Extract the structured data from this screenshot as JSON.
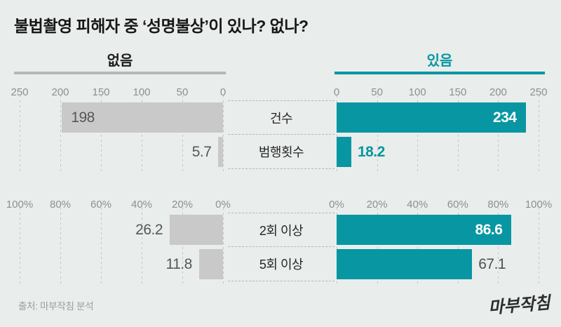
{
  "title": "불법촬영 피해자 중 ‘성명불상’이 있나? 없나?",
  "groups": {
    "left": {
      "label": "없음"
    },
    "right": {
      "label": "있음"
    }
  },
  "colors": {
    "background": "#e9edeb",
    "accent_teal": "#0796a2",
    "bar_gray": "#c9c9c9",
    "title_text": "#171717",
    "muted_text": "#8d908e",
    "value_text": "#575757",
    "logo_text": "#2d2d2d"
  },
  "chart_data": {
    "type": "bar",
    "orientation": "horizontal-diverging",
    "title": "불법촬영 피해자 중 ‘성명불상’이 있나? 없나?",
    "series_labels": [
      "없음",
      "있음"
    ],
    "legend_position": "top",
    "grid": true,
    "charts": [
      {
        "unit": "count",
        "max": 250,
        "ticks_left": [
          "250",
          "200",
          "150",
          "100",
          "50",
          "0"
        ],
        "ticks_right": [
          "0",
          "50",
          "100",
          "150",
          "200",
          "250"
        ],
        "rows": [
          {
            "label": "건수",
            "left": {
              "value": 198,
              "text": "198",
              "placement": "inside"
            },
            "right": {
              "value": 234,
              "text": "234",
              "placement": "inside"
            }
          },
          {
            "label": "범행횟수",
            "left": {
              "value": 5.7,
              "text": "5.7",
              "placement": "outside"
            },
            "right": {
              "value": 18.2,
              "text": "18.2",
              "placement": "outside",
              "emphasis": "accent"
            }
          }
        ]
      },
      {
        "unit": "percent",
        "max": 100,
        "ticks_left": [
          "100%",
          "80%",
          "60%",
          "40%",
          "20%",
          "0%"
        ],
        "ticks_right": [
          "0%",
          "20%",
          "40%",
          "60%",
          "80%",
          "100%"
        ],
        "rows": [
          {
            "label": "2회 이상",
            "left": {
              "value": 26.2,
              "text": "26.2",
              "placement": "outside"
            },
            "right": {
              "value": 86.6,
              "text": "86.6",
              "placement": "inside"
            }
          },
          {
            "label": "5회 이상",
            "left": {
              "value": 11.8,
              "text": "11.8",
              "placement": "outside"
            },
            "right": {
              "value": 67.1,
              "text": "67.1",
              "placement": "outside",
              "emphasis": "muted"
            }
          }
        ]
      }
    ]
  },
  "footer": {
    "source": "출처: 마부작침 분석",
    "logo": "마부작침"
  }
}
